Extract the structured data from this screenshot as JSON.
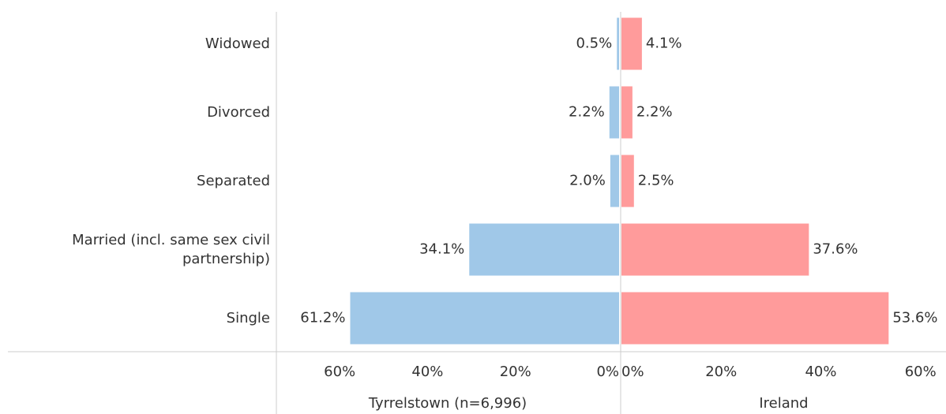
{
  "chart_data": {
    "type": "butterfly",
    "categories": [
      "Widowed",
      "Divorced",
      "Separated",
      "Married (incl. same sex civil partnership)",
      "Single"
    ],
    "series": [
      {
        "name": "Tyrrelstown (n=6,996)",
        "color": "#a0c8e8",
        "values": [
          0.5,
          2.2,
          2.0,
          34.1,
          61.2
        ],
        "value_labels": [
          "0.5%",
          "2.2%",
          "2.0%",
          "34.1%",
          "61.2%"
        ],
        "xlim": [
          0,
          78
        ],
        "xticks": [
          {
            "value": 60,
            "label": "60%"
          },
          {
            "value": 40,
            "label": "40%"
          },
          {
            "value": 20,
            "label": "20%"
          },
          {
            "value": 0,
            "label": "0%"
          }
        ]
      },
      {
        "name": "Ireland",
        "color": "#ff9b9b",
        "values": [
          4.1,
          2.2,
          2.5,
          37.6,
          53.6
        ],
        "value_labels": [
          "4.1%",
          "2.2%",
          "2.5%",
          "37.6%",
          "53.6%"
        ],
        "xlim": [
          0,
          64
        ],
        "xticks": [
          {
            "value": 0,
            "label": "0%"
          },
          {
            "value": 20,
            "label": "20%"
          },
          {
            "value": 40,
            "label": "40%"
          },
          {
            "value": 60,
            "label": "60%"
          }
        ]
      }
    ]
  }
}
